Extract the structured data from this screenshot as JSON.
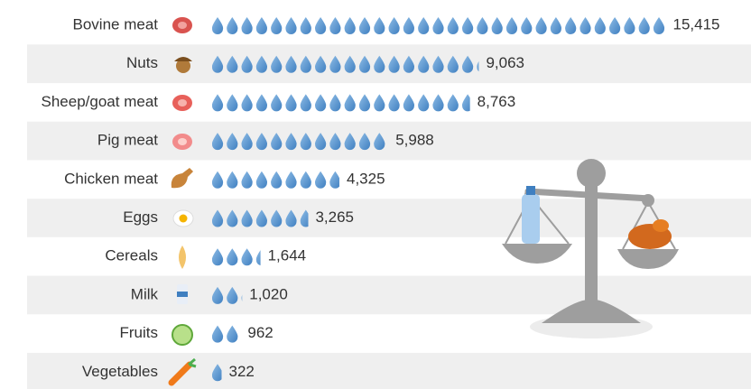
{
  "chart_data": {
    "type": "pictogram",
    "categories": [
      "Bovine meat",
      "Nuts",
      "Sheep/goat meat",
      "Pig meat",
      "Chicken meat",
      "Eggs",
      "Cereals",
      "Milk",
      "Fruits",
      "Vegetables"
    ],
    "values": [
      15415,
      9063,
      8763,
      5988,
      4325,
      3265,
      1644,
      1020,
      962,
      322
    ],
    "value_labels": [
      "15,415",
      "9,063",
      "8,763",
      "5,988",
      "4,325",
      "3,265",
      "1,644",
      "1,020",
      "962",
      "322"
    ],
    "color": "#5b9bd5"
  }
}
